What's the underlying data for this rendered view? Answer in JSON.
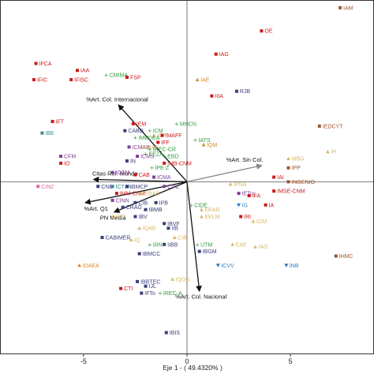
{
  "chart_data": {
    "type": "scatter",
    "xlabel": "Eje 1 - ( 49.4320% )",
    "ylabel": "",
    "xlim": [
      -9.0,
      9.0
    ],
    "ylim": [
      -7.4,
      7.8
    ],
    "x_ticks": [
      -5,
      0,
      5
    ],
    "x_tick_labels": [
      "-5",
      "0",
      "5"
    ],
    "grid": false,
    "groups": {
      "red": "#cc1a1a",
      "green": "#2e9a3a",
      "purple": "#7f3f98",
      "orange": "#d58a2f",
      "darkblue": "#3a3e7a",
      "lavender": "#a08cc4",
      "brown": "#a0542a",
      "tan": "#d9b86a",
      "teal": "#3a8a8a",
      "blue": "#2f7fc1",
      "pink": "#e06aa0"
    },
    "vectors": [
      {
        "label": "%Art. Col. Internacional",
        "x": -3.3,
        "y": 3.3
      },
      {
        "label": "Citas Rel. Mundo",
        "x": -4.5,
        "y": 0.1
      },
      {
        "label": "%Art. Q1",
        "x": -4.9,
        "y": -0.9
      },
      {
        "label": "PN Media",
        "x": -3.5,
        "y": -1.3
      },
      {
        "label": "%Art. Sin Col.",
        "x": 3.6,
        "y": 0.7
      },
      {
        "label": "%Art. Col. Nacional",
        "x": 0.6,
        "y": -4.7
      }
    ],
    "points": [
      {
        "label": "IAM",
        "x": 7.4,
        "y": 7.5,
        "group": "brown"
      },
      {
        "label": "OE",
        "x": 3.6,
        "y": 6.5,
        "group": "red"
      },
      {
        "label": "IAG",
        "x": 1.4,
        "y": 5.5,
        "group": "red"
      },
      {
        "label": "IFCA",
        "x": -7.3,
        "y": 5.1,
        "group": "red"
      },
      {
        "label": "IAA",
        "x": -5.3,
        "y": 4.8,
        "group": "red"
      },
      {
        "label": "IFISC",
        "x": -5.6,
        "y": 4.4,
        "group": "red"
      },
      {
        "label": "CMIMA",
        "x": -3.9,
        "y": 4.6,
        "group": "green"
      },
      {
        "label": "FSP",
        "x": -2.9,
        "y": 4.5,
        "group": "red"
      },
      {
        "label": "IFIC",
        "x": -7.4,
        "y": 4.4,
        "group": "red"
      },
      {
        "label": "IAE",
        "x": 0.5,
        "y": 4.4,
        "group": "orange"
      },
      {
        "label": "RJB",
        "x": 2.4,
        "y": 3.9,
        "group": "darkblue"
      },
      {
        "label": "IIIA",
        "x": 1.2,
        "y": 3.7,
        "group": "red"
      },
      {
        "label": "IFT",
        "x": -6.5,
        "y": 2.6,
        "group": "red"
      },
      {
        "label": "IBE",
        "x": -7.0,
        "y": 2.1,
        "group": "teal"
      },
      {
        "label": "IEM",
        "x": -2.6,
        "y": 2.5,
        "group": "red"
      },
      {
        "label": "CABD",
        "x": -3.0,
        "y": 2.2,
        "group": "darkblue"
      },
      {
        "label": "ICM",
        "x": -1.8,
        "y": 2.2,
        "group": "green"
      },
      {
        "label": "ICP",
        "x": -1.6,
        "y": 2.0,
        "group": "tan"
      },
      {
        "label": "MNCN",
        "x": -0.5,
        "y": 2.5,
        "group": "green"
      },
      {
        "label": "IMAFF",
        "x": -1.2,
        "y": 2.0,
        "group": "red"
      },
      {
        "label": "IMEDEA",
        "x": -2.5,
        "y": 1.9,
        "group": "green"
      },
      {
        "label": "IFF",
        "x": -1.4,
        "y": 1.7,
        "group": "red"
      },
      {
        "label": "ICMAB",
        "x": -2.8,
        "y": 1.5,
        "group": "purple"
      },
      {
        "label": "MAF",
        "x": -2.1,
        "y": 1.5,
        "group": "tan"
      },
      {
        "label": "IREC-CR",
        "x": -1.8,
        "y": 1.4,
        "group": "green"
      },
      {
        "label": "IATS",
        "x": 0.4,
        "y": 1.8,
        "group": "green"
      },
      {
        "label": "IQM",
        "x": 0.8,
        "y": 1.6,
        "group": "orange"
      },
      {
        "label": "ICMS",
        "x": -2.4,
        "y": 1.1,
        "group": "purple"
      },
      {
        "label": "EEZA",
        "x": -2.0,
        "y": 1.2,
        "group": "green"
      },
      {
        "label": "EBD",
        "x": -1.1,
        "y": 1.1,
        "group": "green"
      },
      {
        "label": "IN",
        "x": -2.9,
        "y": 0.9,
        "group": "darkblue"
      },
      {
        "label": "IMB-CNM",
        "x": -1.1,
        "y": 0.8,
        "group": "red"
      },
      {
        "label": "IPE-Z",
        "x": -1.7,
        "y": 0.6,
        "group": "green"
      },
      {
        "label": "CFM",
        "x": -6.1,
        "y": 1.1,
        "group": "purple"
      },
      {
        "label": "IO",
        "x": -6.1,
        "y": 0.8,
        "group": "red"
      },
      {
        "label": "ICCM",
        "x": -3.6,
        "y": 0.4,
        "group": "purple"
      },
      {
        "label": "CAB",
        "x": -2.5,
        "y": 0.3,
        "group": "red"
      },
      {
        "label": "ICMA",
        "x": -1.6,
        "y": 0.2,
        "group": "purple"
      },
      {
        "label": "CNB",
        "x": -4.3,
        "y": -0.2,
        "group": "darkblue"
      },
      {
        "label": "ICTJA",
        "x": -3.6,
        "y": -0.2,
        "group": "teal"
      },
      {
        "label": "IBMCP",
        "x": -2.9,
        "y": -0.2,
        "group": "darkblue"
      },
      {
        "label": "CIAL",
        "x": -1.1,
        "y": -0.2,
        "group": "purple"
      },
      {
        "label": "CIN2",
        "x": -7.2,
        "y": -0.2,
        "group": "pink"
      },
      {
        "label": "IMM-CNM",
        "x": -3.4,
        "y": -0.5,
        "group": "red"
      },
      {
        "label": "EBAS",
        "x": -2.2,
        "y": -0.5,
        "group": "tan"
      },
      {
        "label": "CINN",
        "x": -3.6,
        "y": -0.8,
        "group": "purple"
      },
      {
        "label": "CIB",
        "x": -2.5,
        "y": -0.9,
        "group": "darkblue"
      },
      {
        "label": "IPB",
        "x": -1.5,
        "y": -0.9,
        "group": "darkblue"
      },
      {
        "label": "CRAG",
        "x": -3.1,
        "y": -1.1,
        "group": "darkblue"
      },
      {
        "label": "IBMB",
        "x": -2.0,
        "y": -1.2,
        "group": "darkblue"
      },
      {
        "label": "ICP",
        "x": -3.6,
        "y": -1.5,
        "group": "tan"
      },
      {
        "label": "IBV",
        "x": -2.5,
        "y": -1.5,
        "group": "darkblue"
      },
      {
        "label": "IBVF",
        "x": -1.1,
        "y": -1.8,
        "group": "darkblue"
      },
      {
        "label": "IQAB",
        "x": -2.3,
        "y": -2.0,
        "group": "tan"
      },
      {
        "label": "IIB",
        "x": -0.9,
        "y": -2.0,
        "group": "darkblue"
      },
      {
        "label": "CABIMER",
        "x": -4.1,
        "y": -2.4,
        "group": "darkblue"
      },
      {
        "label": "CIB",
        "x": -0.6,
        "y": -2.4,
        "group": "tan"
      },
      {
        "label": "IQ",
        "x": -2.7,
        "y": -2.5,
        "group": "tan"
      },
      {
        "label": "IRN",
        "x": -1.8,
        "y": -2.7,
        "group": "green"
      },
      {
        "label": "IIBB",
        "x": -1.1,
        "y": -2.7,
        "group": "darkblue"
      },
      {
        "label": "IBMCC",
        "x": -2.3,
        "y": -3.1,
        "group": "darkblue"
      },
      {
        "label": "IDAEA",
        "x": -5.2,
        "y": -3.6,
        "group": "orange"
      },
      {
        "label": "IQOG",
        "x": -0.7,
        "y": -4.2,
        "group": "tan"
      },
      {
        "label": "IBBTEC",
        "x": -2.4,
        "y": -4.3,
        "group": "darkblue"
      },
      {
        "label": "CTI",
        "x": -3.2,
        "y": -4.6,
        "group": "red"
      },
      {
        "label": "IJL",
        "x": -2.0,
        "y": -4.5,
        "group": "darkblue"
      },
      {
        "label": "IFTo",
        "x": -2.2,
        "y": -4.8,
        "group": "darkblue"
      },
      {
        "label": "IREC-A",
        "x": -1.3,
        "y": -4.8,
        "group": "green"
      },
      {
        "label": "IBIS",
        "x": -1.0,
        "y": -6.5,
        "group": "darkblue"
      },
      {
        "label": "IEDCYT",
        "x": 6.4,
        "y": 2.4,
        "group": "brown"
      },
      {
        "label": "IH",
        "x": 6.8,
        "y": 1.3,
        "group": "tan"
      },
      {
        "label": "MBG",
        "x": 4.9,
        "y": 1.0,
        "group": "tan"
      },
      {
        "label": "IPP",
        "x": 4.9,
        "y": 0.6,
        "group": "brown"
      },
      {
        "label": "IAI",
        "x": 4.2,
        "y": 0.2,
        "group": "red"
      },
      {
        "label": "INGENIO",
        "x": 4.9,
        "y": 0.0,
        "group": "brown"
      },
      {
        "label": "IPNA",
        "x": 2.1,
        "y": -0.1,
        "group": "tan"
      },
      {
        "label": "IMSE-CNM",
        "x": 4.2,
        "y": -0.4,
        "group": "red"
      },
      {
        "label": "IETcc",
        "x": 2.5,
        "y": -0.5,
        "group": "purple"
      },
      {
        "label": "IFA",
        "x": 3.0,
        "y": -0.6,
        "group": "red"
      },
      {
        "label": "IA",
        "x": 3.8,
        "y": -1.0,
        "group": "red"
      },
      {
        "label": "CIDE",
        "x": 0.2,
        "y": -1.0,
        "group": "green"
      },
      {
        "label": "IG",
        "x": 2.5,
        "y": -1.0,
        "group": "blue"
      },
      {
        "label": "EEAD",
        "x": 0.7,
        "y": -1.2,
        "group": "tan"
      },
      {
        "label": "EELM",
        "x": 0.7,
        "y": -1.5,
        "group": "tan"
      },
      {
        "label": "IRI",
        "x": 2.6,
        "y": -1.5,
        "group": "red"
      },
      {
        "label": "IGM",
        "x": 3.2,
        "y": -1.7,
        "group": "tan"
      },
      {
        "label": "UTM",
        "x": 0.5,
        "y": -2.7,
        "group": "green"
      },
      {
        "label": "EAE",
        "x": 2.2,
        "y": -2.7,
        "group": "tan"
      },
      {
        "label": "IAG",
        "x": 3.3,
        "y": -2.8,
        "group": "tan"
      },
      {
        "label": "IBGM",
        "x": 0.6,
        "y": -3.0,
        "group": "darkblue"
      },
      {
        "label": "IHMC",
        "x": 7.2,
        "y": -3.2,
        "group": "brown"
      },
      {
        "label": "ICVV",
        "x": 1.5,
        "y": -3.6,
        "group": "blue"
      },
      {
        "label": "INB",
        "x": 4.8,
        "y": -3.6,
        "group": "blue"
      }
    ]
  }
}
